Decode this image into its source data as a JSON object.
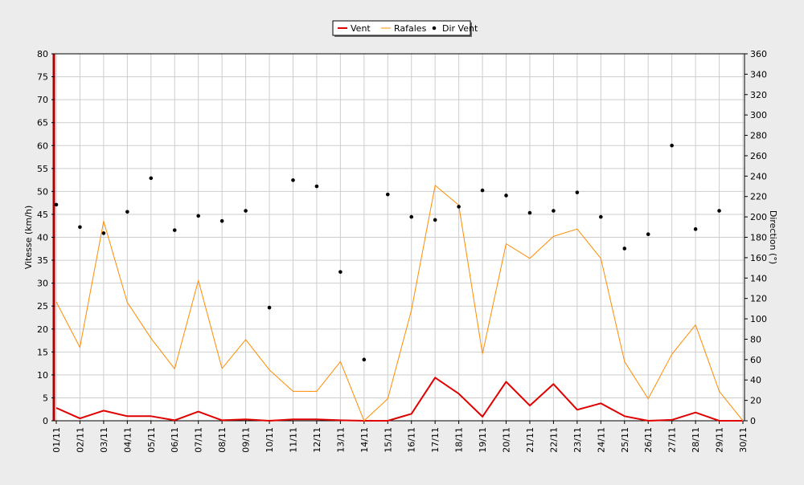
{
  "chart_data": {
    "type": "line",
    "legend": [
      {
        "label": "Vent",
        "color": "#e00000",
        "kind": "line"
      },
      {
        "label": "Rafales",
        "color": "#ff8c00",
        "kind": "line"
      },
      {
        "label": "Dir Vent",
        "color": "#000000",
        "kind": "point"
      }
    ],
    "legend_position": "top-center",
    "ylabel_left": "Vitesse (km/h)",
    "ylabel_right": "Direction (°)",
    "ylim_left": [
      0,
      80
    ],
    "ylim_right": [
      0,
      360
    ],
    "yticks_left": [
      0,
      5,
      10,
      15,
      20,
      25,
      30,
      35,
      40,
      45,
      50,
      55,
      60,
      65,
      70,
      75,
      80
    ],
    "yticks_right": [
      0,
      20,
      40,
      60,
      80,
      100,
      120,
      140,
      160,
      180,
      200,
      220,
      240,
      260,
      280,
      300,
      320,
      340,
      360
    ],
    "grid": true,
    "categories": [
      "01/11",
      "02/11",
      "03/11",
      "04/11",
      "05/11",
      "06/11",
      "07/11",
      "08/11",
      "09/11",
      "10/11",
      "11/11",
      "12/11",
      "13/11",
      "14/11",
      "15/11",
      "16/11",
      "17/11",
      "18/11",
      "19/11",
      "20/11",
      "21/11",
      "22/11",
      "23/11",
      "24/11",
      "25/11",
      "26/11",
      "27/11",
      "28/11",
      "29/11",
      "30/11"
    ],
    "series": [
      {
        "name": "Vent",
        "axis": "left",
        "color": "#e00000",
        "values": [
          2.8,
          0.5,
          2.2,
          1.0,
          1.0,
          0.1,
          2.0,
          0.1,
          0.3,
          0.0,
          0.3,
          0.3,
          0.1,
          0.0,
          0.0,
          1.5,
          9.4,
          5.9,
          0.9,
          8.5,
          3.3,
          8.0,
          2.4,
          3.8,
          1.0,
          0.0,
          0.2,
          1.8,
          0.0,
          0.0
        ]
      },
      {
        "name": "Rafales",
        "axis": "left",
        "color": "#ff8c00",
        "values": [
          25.9,
          16.0,
          43.5,
          25.8,
          18.0,
          11.3,
          30.6,
          11.4,
          17.7,
          11.1,
          6.4,
          6.4,
          12.9,
          0.0,
          4.8,
          24.1,
          51.3,
          47.0,
          14.6,
          38.6,
          35.4,
          40.2,
          41.8,
          35.4,
          12.9,
          4.8,
          14.5,
          20.9,
          6.4,
          0.0
        ]
      },
      {
        "name": "Dir Vent",
        "axis": "right",
        "color": "#000000",
        "values": [
          212,
          190,
          184,
          205,
          238,
          187,
          201,
          196,
          206,
          111,
          236,
          230,
          146,
          60,
          222,
          200,
          197,
          210,
          226,
          221,
          204,
          206,
          224,
          200,
          169,
          183,
          270,
          188,
          206,
          null
        ]
      }
    ]
  }
}
